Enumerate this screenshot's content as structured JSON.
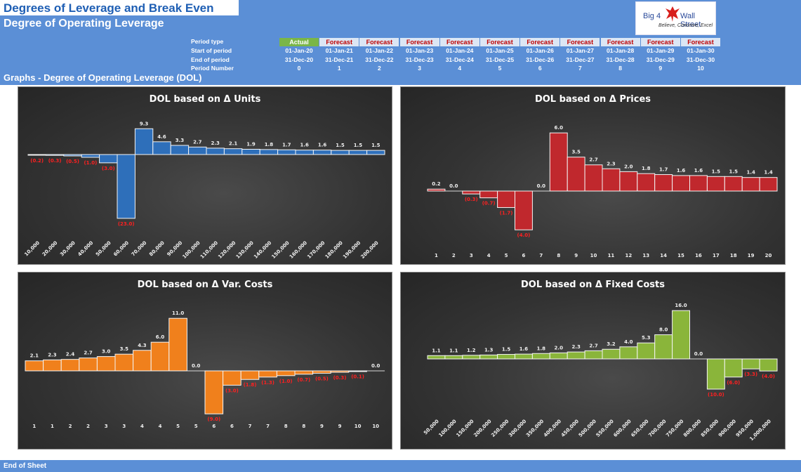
{
  "header": {
    "title": "Degrees of Leverage and Break Even",
    "subtitle": "Degree of Operating Leverage",
    "graphs_title": "Graphs - Degree of Operating Leverage (DOL)",
    "logo": {
      "text_left": "Big 4",
      "text_right": "Wall Street",
      "tagline": "Believe, Conceive, Excel",
      "icon": "eagle-icon"
    }
  },
  "periods": {
    "labels": {
      "type": "Period type",
      "start": "Start of period",
      "end": "End of period",
      "number": "Period Number"
    },
    "types": [
      "Actual",
      "Forecast",
      "Forecast",
      "Forecast",
      "Forecast",
      "Forecast",
      "Forecast",
      "Forecast",
      "Forecast",
      "Forecast",
      "Forecast"
    ],
    "starts": [
      "01-Jan-20",
      "01-Jan-21",
      "01-Jan-22",
      "01-Jan-23",
      "01-Jan-24",
      "01-Jan-25",
      "01-Jan-26",
      "01-Jan-27",
      "01-Jan-28",
      "01-Jan-29",
      "01-Jan-30"
    ],
    "ends": [
      "31-Dec-20",
      "31-Dec-21",
      "31-Dec-22",
      "31-Dec-23",
      "31-Dec-24",
      "31-Dec-25",
      "31-Dec-26",
      "31-Dec-27",
      "31-Dec-28",
      "31-Dec-29",
      "31-Dec-30"
    ],
    "numbers": [
      "0",
      "1",
      "2",
      "3",
      "4",
      "5",
      "6",
      "7",
      "8",
      "9",
      "10"
    ]
  },
  "colors": {
    "header_blue": "#5b8fd6",
    "actual_green": "#7ab648",
    "forecast_red": "#c00000",
    "negative_label": "#ff2020"
  },
  "footer": {
    "text": "End of Sheet"
  },
  "chart_data": [
    {
      "type": "bar",
      "title": "DOL based on Δ Units",
      "color": "#2e6fba",
      "categories": [
        "10,000",
        "20,000",
        "30,000",
        "40,000",
        "50,000",
        "60,000",
        "70,000",
        "80,000",
        "90,000",
        "100,000",
        "110,000",
        "120,000",
        "130,000",
        "140,000",
        "150,000",
        "160,000",
        "170,000",
        "180,000",
        "190,000",
        "200,000"
      ],
      "values": [
        -0.2,
        -0.3,
        -0.5,
        -1.0,
        -3.0,
        -23.0,
        9.3,
        4.6,
        3.3,
        2.7,
        2.3,
        2.1,
        1.9,
        1.8,
        1.7,
        1.6,
        1.6,
        1.5,
        1.5,
        1.5
      ],
      "labels": [
        "(0.2)",
        "(0.3)",
        "(0.5)",
        "(1.0)",
        "(3.0)",
        "(23.0)",
        "9.3",
        "4.6",
        "3.3",
        "2.7",
        "2.3",
        "2.1",
        "1.9",
        "1.8",
        "1.7",
        "1.6",
        "1.6",
        "1.5",
        "1.5",
        "1.5"
      ],
      "xlabel_rotated": true
    },
    {
      "type": "bar",
      "title": "DOL based on Δ Prices",
      "color": "#c0282d",
      "categories": [
        "1",
        "2",
        "3",
        "4",
        "5",
        "6",
        "7",
        "8",
        "9",
        "10",
        "11",
        "12",
        "13",
        "14",
        "15",
        "16",
        "17",
        "18",
        "19",
        "20"
      ],
      "values": [
        0.2,
        0.0,
        -0.3,
        -0.7,
        -1.7,
        -4.0,
        0.0,
        6.0,
        3.5,
        2.7,
        2.3,
        2.0,
        1.8,
        1.7,
        1.6,
        1.6,
        1.5,
        1.5,
        1.4,
        1.4
      ],
      "labels": [
        "0.2",
        "0.0",
        "(0.3)",
        "(0.7)",
        "(1.7)",
        "(4.0)",
        "0.0",
        "6.0",
        "3.5",
        "2.7",
        "2.3",
        "2.0",
        "1.8",
        "1.7",
        "1.6",
        "1.6",
        "1.5",
        "1.5",
        "1.4",
        "1.4"
      ],
      "xlabel_rotated": false
    },
    {
      "type": "bar",
      "title": "DOL based on Δ Var. Costs",
      "color": "#f0801c",
      "categories": [
        "1",
        "1",
        "2",
        "2",
        "3",
        "3",
        "4",
        "4",
        "5",
        "5",
        "6",
        "6",
        "7",
        "7",
        "8",
        "8",
        "9",
        "9",
        "10",
        "10"
      ],
      "values": [
        2.1,
        2.3,
        2.4,
        2.7,
        3.0,
        3.5,
        4.3,
        6.0,
        11.0,
        0.0,
        -9.0,
        -3.0,
        -1.8,
        -1.3,
        -1.0,
        -0.7,
        -0.5,
        -0.3,
        -0.1,
        0.0
      ],
      "labels": [
        "2.1",
        "2.3",
        "2.4",
        "2.7",
        "3.0",
        "3.5",
        "4.3",
        "6.0",
        "11.0",
        "0.0",
        "(9.0)",
        "(3.0)",
        "(1.8)",
        "(1.3)",
        "(1.0)",
        "(0.7)",
        "(0.5)",
        "(0.3)",
        "(0.1)",
        "0.0"
      ],
      "xlabel_rotated": false
    },
    {
      "type": "bar",
      "title": "DOL based on Δ Fixed Costs",
      "color": "#8ab53a",
      "categories": [
        "50,000",
        "100,000",
        "150,000",
        "200,000",
        "250,000",
        "300,000",
        "350,000",
        "400,000",
        "450,000",
        "500,000",
        "550,000",
        "600,000",
        "650,000",
        "700,000",
        "750,000",
        "800,000",
        "850,000",
        "900,000",
        "950,000",
        "1,000,000"
      ],
      "values": [
        1.1,
        1.1,
        1.2,
        1.3,
        1.5,
        1.6,
        1.8,
        2.0,
        2.3,
        2.7,
        3.2,
        4.0,
        5.3,
        8.0,
        16.0,
        0.0,
        -10.0,
        -6.0,
        -3.3,
        -4.0
      ],
      "labels": [
        "1.1",
        "1.1",
        "1.2",
        "1.3",
        "1.5",
        "1.6",
        "1.8",
        "2.0",
        "2.3",
        "2.7",
        "3.2",
        "4.0",
        "5.3",
        "8.0",
        "16.0",
        "0.0",
        "(10.0)",
        "(6.0)",
        "(3.3)",
        "(4.0)"
      ],
      "xlabel_rotated": true
    }
  ]
}
